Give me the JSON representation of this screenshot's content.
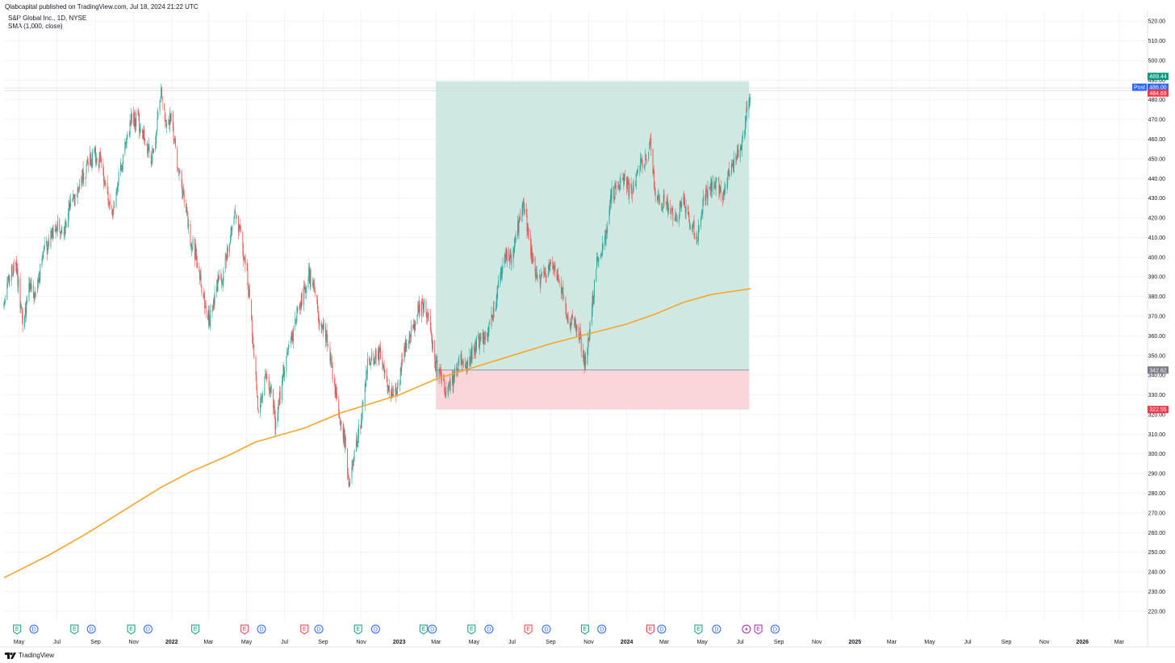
{
  "header": {
    "published_line": "Qlabcapital published on TradingView.com, Jul 18, 2024 21:22 UTC"
  },
  "legend": {
    "symbol_line": "S&P Global Inc., 1D, NYSE",
    "indicator_line": "SMA (1,000, close)"
  },
  "footer": {
    "brand": "TradingView"
  },
  "colors": {
    "up": "#26a69a",
    "down": "#ef5350",
    "sma": "#f7a529",
    "target_zone": "#cfe9e2",
    "stop_zone": "#f9d6da",
    "grid": "#f2f3f5",
    "post_tag": "#2962ff",
    "entry_tag": "#787b86"
  },
  "price_tags": [
    {
      "label": "489.44",
      "value": 489.44,
      "color": "#089981"
    },
    {
      "label": "486.00",
      "value": 486.0,
      "color": "#2962ff",
      "prefix": "Post"
    },
    {
      "label": "484.69",
      "value": 484.69,
      "color": "#f23645"
    },
    {
      "label": "342.62",
      "value": 342.62,
      "color": "#787b86"
    },
    {
      "label": "322.55",
      "value": 322.55,
      "color": "#f23645"
    }
  ],
  "chart_data": {
    "type": "line",
    "title": "S&P Global Inc., 1D, NYSE",
    "ylim": [
      215,
      525
    ],
    "y_ticks": [
      "220.00",
      "230.00",
      "240.00",
      "250.00",
      "260.00",
      "270.00",
      "280.00",
      "290.00",
      "300.00",
      "310.00",
      "320.00",
      "330.00",
      "340.00",
      "350.00",
      "360.00",
      "370.00",
      "380.00",
      "390.00",
      "400.00",
      "410.00",
      "420.00",
      "430.00",
      "440.00",
      "450.00",
      "460.00",
      "470.00",
      "480.00",
      "490.00",
      "500.00",
      "510.00",
      "520.00"
    ],
    "x_tick_labels": [
      {
        "date": "2021-05-01",
        "label": "May"
      },
      {
        "date": "2021-07-01",
        "label": "Jul"
      },
      {
        "date": "2021-09-01",
        "label": "Sep"
      },
      {
        "date": "2021-11-01",
        "label": "Nov"
      },
      {
        "date": "2022-01-01",
        "label": "2022",
        "bold": true
      },
      {
        "date": "2022-03-01",
        "label": "Mar"
      },
      {
        "date": "2022-05-01",
        "label": "May"
      },
      {
        "date": "2022-07-01",
        "label": "Jul"
      },
      {
        "date": "2022-09-01",
        "label": "Sep"
      },
      {
        "date": "2022-11-01",
        "label": "Nov"
      },
      {
        "date": "2023-01-01",
        "label": "2023",
        "bold": true
      },
      {
        "date": "2023-03-01",
        "label": "Mar"
      },
      {
        "date": "2023-05-01",
        "label": "May"
      },
      {
        "date": "2023-07-01",
        "label": "Jul"
      },
      {
        "date": "2023-09-01",
        "label": "Sep"
      },
      {
        "date": "2023-11-01",
        "label": "Nov"
      },
      {
        "date": "2024-01-01",
        "label": "2024",
        "bold": true
      },
      {
        "date": "2024-03-01",
        "label": "Mar"
      },
      {
        "date": "2024-05-01",
        "label": "May"
      },
      {
        "date": "2024-07-01",
        "label": "Jul"
      },
      {
        "date": "2024-09-01",
        "label": "Sep"
      },
      {
        "date": "2024-11-01",
        "label": "Nov"
      },
      {
        "date": "2025-01-01",
        "label": "2025",
        "bold": true
      },
      {
        "date": "2025-03-01",
        "label": "Mar"
      },
      {
        "date": "2025-05-01",
        "label": "May"
      },
      {
        "date": "2025-07-01",
        "label": "Jul"
      },
      {
        "date": "2025-09-01",
        "label": "Sep"
      },
      {
        "date": "2025-11-01",
        "label": "Nov"
      },
      {
        "date": "2026-01-01",
        "label": "2026",
        "bold": true
      },
      {
        "date": "2026-03-01",
        "label": "Mar"
      }
    ],
    "series": [
      {
        "name": "S&P Global Inc.",
        "kind": "close",
        "points": [
          [
            "2021-04-07",
            373
          ],
          [
            "2021-04-16",
            392
          ],
          [
            "2021-04-26",
            398
          ],
          [
            "2021-05-07",
            366
          ],
          [
            "2021-05-18",
            386
          ],
          [
            "2021-05-28",
            380
          ],
          [
            "2021-06-08",
            400
          ],
          [
            "2021-06-18",
            408
          ],
          [
            "2021-06-29",
            418
          ],
          [
            "2021-07-09",
            410
          ],
          [
            "2021-07-20",
            425
          ],
          [
            "2021-07-30",
            430
          ],
          [
            "2021-08-10",
            440
          ],
          [
            "2021-08-20",
            448
          ],
          [
            "2021-08-31",
            452
          ],
          [
            "2021-09-10",
            447
          ],
          [
            "2021-09-20",
            433
          ],
          [
            "2021-09-30",
            422
          ],
          [
            "2021-10-08",
            440
          ],
          [
            "2021-10-18",
            455
          ],
          [
            "2021-10-28",
            471
          ],
          [
            "2021-11-08",
            469
          ],
          [
            "2021-11-18",
            460
          ],
          [
            "2021-11-29",
            450
          ],
          [
            "2021-12-08",
            465
          ],
          [
            "2021-12-15",
            483
          ],
          [
            "2021-12-22",
            470
          ],
          [
            "2021-12-31",
            470
          ],
          [
            "2022-01-10",
            448
          ],
          [
            "2022-01-20",
            430
          ],
          [
            "2022-01-31",
            410
          ],
          [
            "2022-02-10",
            400
          ],
          [
            "2022-02-22",
            378
          ],
          [
            "2022-03-03",
            368
          ],
          [
            "2022-03-14",
            385
          ],
          [
            "2022-03-24",
            390
          ],
          [
            "2022-04-04",
            408
          ],
          [
            "2022-04-12",
            420
          ],
          [
            "2022-04-21",
            412
          ],
          [
            "2022-05-02",
            390
          ],
          [
            "2022-05-12",
            356
          ],
          [
            "2022-05-20",
            322
          ],
          [
            "2022-06-01",
            342
          ],
          [
            "2022-06-10",
            330
          ],
          [
            "2022-06-17",
            314
          ],
          [
            "2022-06-28",
            340
          ],
          [
            "2022-07-08",
            352
          ],
          [
            "2022-07-20",
            370
          ],
          [
            "2022-08-01",
            382
          ],
          [
            "2022-08-08",
            392
          ],
          [
            "2022-08-17",
            385
          ],
          [
            "2022-08-26",
            368
          ],
          [
            "2022-09-07",
            358
          ],
          [
            "2022-09-16",
            340
          ],
          [
            "2022-09-28",
            316
          ],
          [
            "2022-10-07",
            305
          ],
          [
            "2022-10-13",
            282
          ],
          [
            "2022-10-21",
            300
          ],
          [
            "2022-10-31",
            316
          ],
          [
            "2022-11-10",
            345
          ],
          [
            "2022-11-18",
            348
          ],
          [
            "2022-11-30",
            352
          ],
          [
            "2022-12-09",
            340
          ],
          [
            "2022-12-20",
            330
          ],
          [
            "2022-12-30",
            334
          ],
          [
            "2023-01-10",
            355
          ],
          [
            "2023-01-20",
            362
          ],
          [
            "2023-01-31",
            372
          ],
          [
            "2023-02-08",
            376
          ],
          [
            "2023-02-17",
            370
          ],
          [
            "2023-02-28",
            346
          ],
          [
            "2023-03-09",
            337
          ],
          [
            "2023-03-17",
            330
          ],
          [
            "2023-03-28",
            338
          ],
          [
            "2023-04-06",
            348
          ],
          [
            "2023-04-18",
            345
          ],
          [
            "2023-04-28",
            352
          ],
          [
            "2023-05-09",
            358
          ],
          [
            "2023-05-19",
            360
          ],
          [
            "2023-05-31",
            370
          ],
          [
            "2023-06-09",
            385
          ],
          [
            "2023-06-21",
            402
          ],
          [
            "2023-06-30",
            400
          ],
          [
            "2023-07-11",
            415
          ],
          [
            "2023-07-21",
            428
          ],
          [
            "2023-07-28",
            408
          ],
          [
            "2023-08-08",
            392
          ],
          [
            "2023-08-18",
            388
          ],
          [
            "2023-08-29",
            395
          ],
          [
            "2023-09-08",
            392
          ],
          [
            "2023-09-19",
            382
          ],
          [
            "2023-09-29",
            366
          ],
          [
            "2023-10-06",
            370
          ],
          [
            "2023-10-17",
            360
          ],
          [
            "2023-10-25",
            345
          ],
          [
            "2023-11-03",
            364
          ],
          [
            "2023-11-14",
            398
          ],
          [
            "2023-11-28",
            412
          ],
          [
            "2023-12-08",
            432
          ],
          [
            "2023-12-19",
            438
          ],
          [
            "2023-12-29",
            440
          ],
          [
            "2024-01-09",
            430
          ],
          [
            "2024-01-19",
            445
          ],
          [
            "2024-01-31",
            450
          ],
          [
            "2024-02-07",
            460
          ],
          [
            "2024-02-16",
            430
          ],
          [
            "2024-02-28",
            428
          ],
          [
            "2024-03-08",
            425
          ],
          [
            "2024-03-20",
            420
          ],
          [
            "2024-04-01",
            428
          ],
          [
            "2024-04-12",
            418
          ],
          [
            "2024-04-23",
            410
          ],
          [
            "2024-05-03",
            430
          ],
          [
            "2024-05-14",
            435
          ],
          [
            "2024-05-24",
            438
          ],
          [
            "2024-06-05",
            430
          ],
          [
            "2024-06-14",
            445
          ],
          [
            "2024-06-26",
            450
          ],
          [
            "2024-07-03",
            455
          ],
          [
            "2024-07-10",
            470
          ],
          [
            "2024-07-15",
            480
          ],
          [
            "2024-07-18",
            486
          ]
        ]
      },
      {
        "name": "SMA (1,000, close)",
        "points": [
          [
            "2021-04-07",
            237
          ],
          [
            "2021-06-15",
            248
          ],
          [
            "2021-08-15",
            259
          ],
          [
            "2021-10-15",
            271
          ],
          [
            "2021-12-15",
            283
          ],
          [
            "2022-02-01",
            291
          ],
          [
            "2022-04-01",
            299
          ],
          [
            "2022-05-15",
            306
          ],
          [
            "2022-08-01",
            313
          ],
          [
            "2022-10-01",
            321
          ],
          [
            "2023-01-01",
            330
          ],
          [
            "2023-03-01",
            338
          ],
          [
            "2023-05-01",
            344
          ],
          [
            "2023-07-01",
            350
          ],
          [
            "2023-09-01",
            356
          ],
          [
            "2023-11-01",
            361
          ],
          [
            "2024-01-01",
            366
          ],
          [
            "2024-02-15",
            371
          ],
          [
            "2024-04-01",
            377
          ],
          [
            "2024-05-15",
            381
          ],
          [
            "2024-07-18",
            384
          ]
        ]
      }
    ],
    "position": {
      "start": "2023-03-01",
      "end": "2024-07-18",
      "entry": 342.62,
      "stop": 322.55,
      "target": 489.44
    },
    "last_price": 486.0,
    "events": [
      {
        "date": "2021-04-28",
        "type": "E",
        "status": "up"
      },
      {
        "date": "2021-05-25",
        "type": "D"
      },
      {
        "date": "2021-07-29",
        "type": "E",
        "status": "up"
      },
      {
        "date": "2021-08-25",
        "type": "D"
      },
      {
        "date": "2021-10-28",
        "type": "E",
        "status": "up"
      },
      {
        "date": "2021-11-24",
        "type": "D"
      },
      {
        "date": "2022-02-08",
        "type": "E",
        "status": "up"
      },
      {
        "date": "2022-04-28",
        "type": "E",
        "status": "down"
      },
      {
        "date": "2022-05-25",
        "type": "D"
      },
      {
        "date": "2022-08-02",
        "type": "E",
        "status": "down"
      },
      {
        "date": "2022-08-25",
        "type": "D"
      },
      {
        "date": "2022-10-27",
        "type": "E",
        "status": "up"
      },
      {
        "date": "2022-11-24",
        "type": "D"
      },
      {
        "date": "2023-02-09",
        "type": "E",
        "status": "up"
      },
      {
        "date": "2023-02-23",
        "type": "D"
      },
      {
        "date": "2023-04-27",
        "type": "E",
        "status": "up"
      },
      {
        "date": "2023-05-25",
        "type": "D"
      },
      {
        "date": "2023-07-27",
        "type": "E",
        "status": "down"
      },
      {
        "date": "2023-08-25",
        "type": "D"
      },
      {
        "date": "2023-10-26",
        "type": "E",
        "status": "up"
      },
      {
        "date": "2023-11-22",
        "type": "D"
      },
      {
        "date": "2024-02-08",
        "type": "E",
        "status": "down"
      },
      {
        "date": "2024-02-26",
        "type": "D"
      },
      {
        "date": "2024-04-25",
        "type": "E",
        "status": "up"
      },
      {
        "date": "2024-05-24",
        "type": "D"
      },
      {
        "date": "2024-07-11",
        "type": "S"
      },
      {
        "date": "2024-07-30",
        "type": "E",
        "status": "future"
      },
      {
        "date": "2024-08-26",
        "type": "D"
      }
    ]
  }
}
